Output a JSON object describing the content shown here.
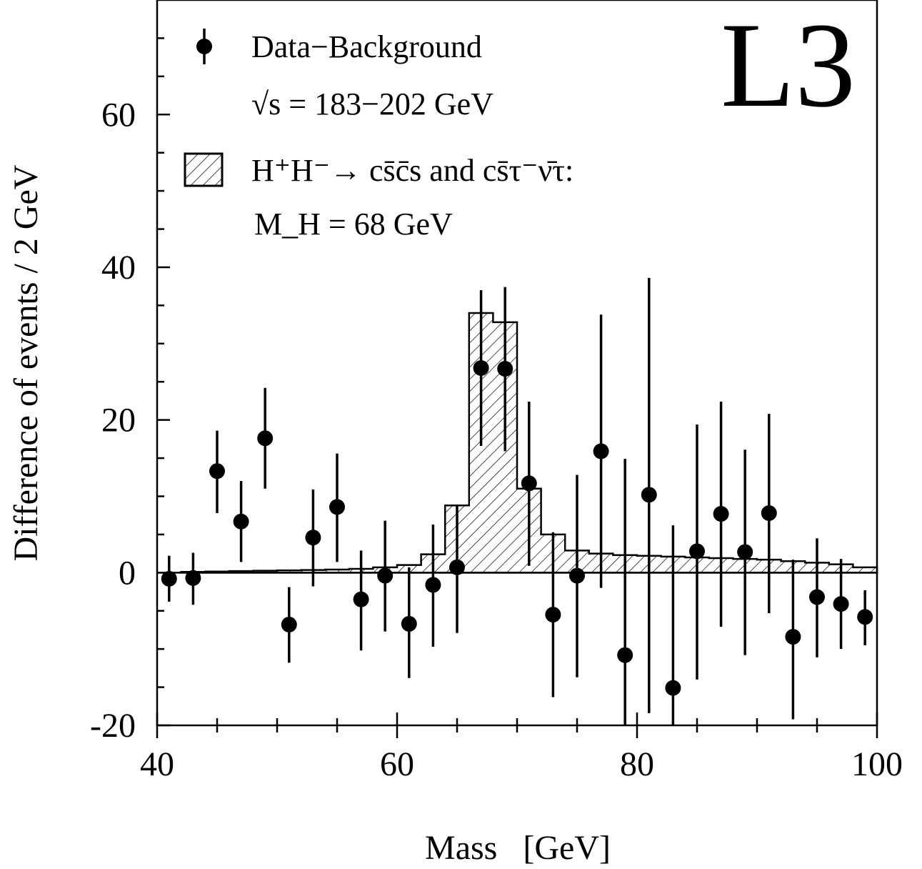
{
  "chart_data": {
    "type": "scatter",
    "logo": "L3",
    "xlabel": "Mass   [GeV]",
    "ylabel": "Difference of events / 2 GeV",
    "xlim": [
      40,
      100
    ],
    "ylim": [
      -20,
      75
    ],
    "x_ticks": [
      40,
      60,
      80,
      100
    ],
    "x_tick_labels": [
      "40",
      "60",
      "80",
      "100"
    ],
    "y_ticks": [
      -20,
      0,
      20,
      40,
      60
    ],
    "y_tick_labels": [
      "-20",
      "0",
      "20",
      "40",
      "60"
    ],
    "grid": false,
    "legend": {
      "position": "top-left",
      "data_label": "Data−Background",
      "energy_label": "√s = 183−202 GeV",
      "signal_label": "H⁺H⁻→ cs̄c̄s and cs̄τ⁻ν̄τ:",
      "mass_label": "M_H = 68  GeV"
    },
    "series": [
      {
        "name": "Data−Background",
        "kind": "points_with_errors",
        "x": [
          41,
          43,
          45,
          47,
          49,
          51,
          53,
          55,
          57,
          59,
          61,
          63,
          65,
          67,
          69,
          71,
          73,
          75,
          77,
          79,
          81,
          83,
          85,
          87,
          89,
          91,
          93,
          95,
          97,
          99
        ],
        "y": [
          -0.8,
          -0.7,
          13.3,
          6.7,
          17.6,
          -6.8,
          4.6,
          8.6,
          -3.5,
          -0.4,
          -6.7,
          -1.6,
          0.7,
          26.8,
          26.7,
          11.7,
          -5.5,
          -0.4,
          15.9,
          -10.8,
          10.2,
          -15.1,
          2.8,
          7.7,
          2.7,
          7.8,
          -8.4,
          -3.2,
          -4.1,
          -5.8
        ],
        "y_low": [
          -3.8,
          -4.2,
          7.8,
          1.4,
          11.0,
          -11.8,
          -1.8,
          1.4,
          -10.2,
          -7.7,
          -13.8,
          -9.7,
          -7.9,
          16.6,
          15.9,
          0.9,
          -16.3,
          -13.7,
          -2.0,
          -20.0,
          -18.4,
          -20.0,
          -14.0,
          -7.1,
          -10.8,
          -5.3,
          -19.2,
          -11.1,
          -10.0,
          -9.5
        ],
        "y_high": [
          2.2,
          2.6,
          18.6,
          12.0,
          24.2,
          -1.9,
          10.9,
          15.6,
          2.9,
          6.8,
          0.7,
          6.3,
          8.8,
          37.0,
          37.4,
          22.4,
          5.3,
          12.8,
          33.8,
          14.9,
          38.6,
          6.2,
          19.4,
          22.4,
          16.1,
          20.8,
          1.7,
          4.5,
          1.8,
          -2.3
        ]
      },
      {
        "name": "H⁺H⁻→ cs̄c̄s and cs̄τ⁻ν̄τ",
        "kind": "hatched_histogram",
        "bin_edges": [
          42,
          44,
          46,
          48,
          50,
          52,
          54,
          56,
          58,
          60,
          62,
          64,
          66,
          68,
          70,
          72,
          74,
          76,
          78,
          80,
          82,
          84,
          86,
          88,
          90,
          92,
          94,
          96,
          98,
          100
        ],
        "values": [
          0.1,
          0.15,
          0.2,
          0.25,
          0.3,
          0.35,
          0.4,
          0.5,
          0.7,
          1.0,
          2.4,
          8.8,
          34.0,
          32.8,
          11.0,
          5.0,
          2.9,
          2.5,
          2.3,
          2.2,
          2.1,
          2.0,
          1.9,
          1.8,
          1.7,
          1.5,
          1.3,
          1.1,
          0.7
        ]
      }
    ]
  }
}
